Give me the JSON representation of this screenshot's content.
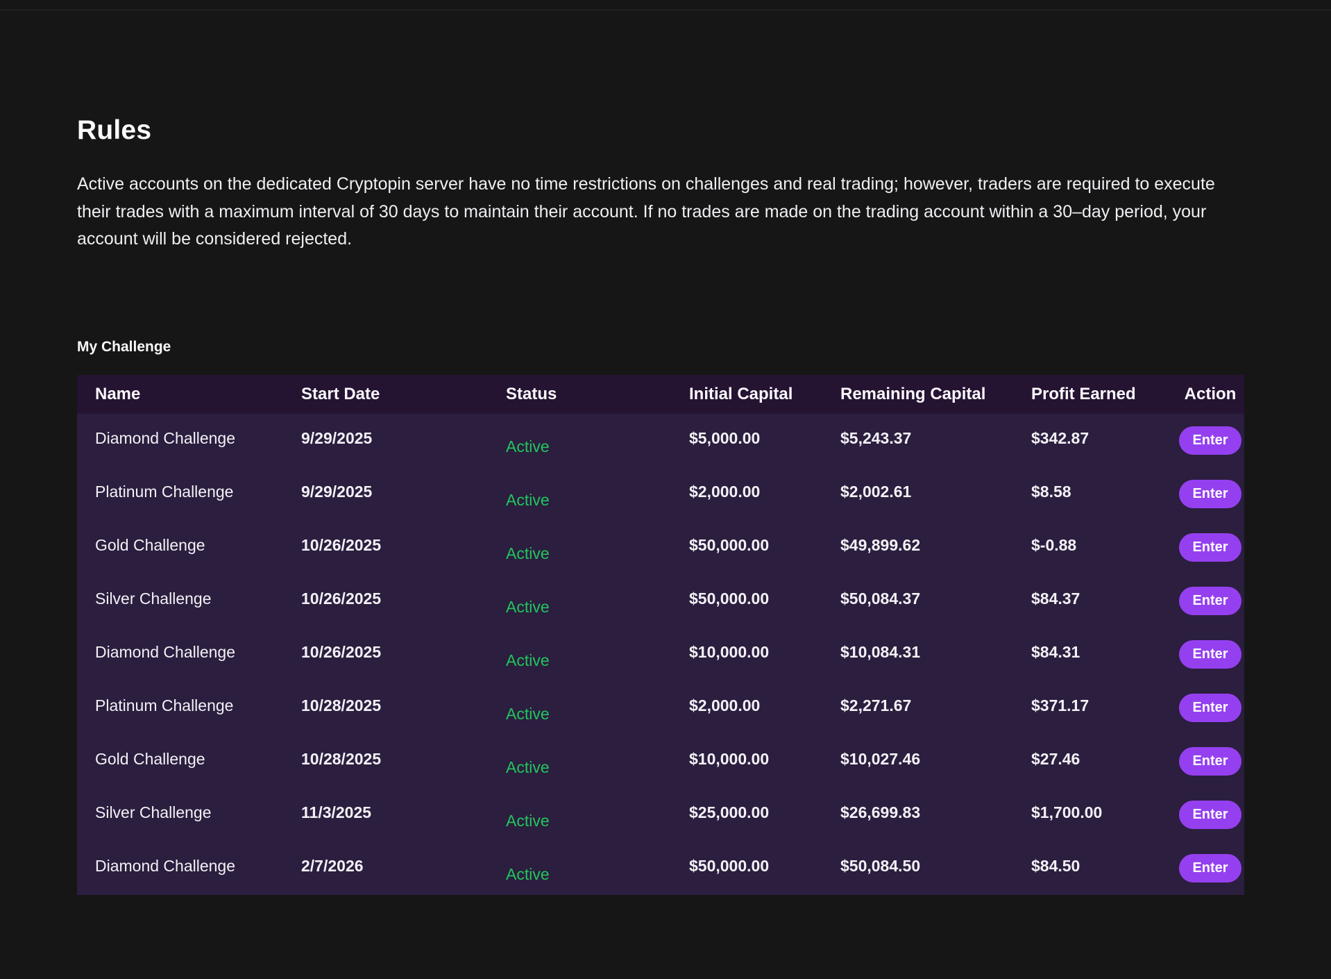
{
  "page": {
    "title": "Rules",
    "description": "Active accounts on the dedicated Cryptopin server have no time restrictions on challenges and real trading; however, traders are required to execute their trades with a maximum interval of 30 days to maintain their account. If no trades are made on the trading account within a 30–day period, your account will be considered rejected.",
    "section_title": "My Challenge"
  },
  "colors": {
    "background": "#161616",
    "table_header_bg": "#251332",
    "table_body_bg": "#2b1e3e",
    "status_active_green": "#22c55e",
    "accent_button_purple": "#9540f0",
    "text": "#f3f1f6"
  },
  "table": {
    "headers": [
      "Name",
      "Start Date",
      "Status",
      "Initial Capital",
      "Remaining Capital",
      "Profit Earned",
      "Action"
    ],
    "action_label": "Enter",
    "rows": [
      {
        "name": "Diamond Challenge",
        "start_date": "9/29/2025",
        "status": "Active",
        "initial_capital": "$5,000.00",
        "remaining_capital": "$5,243.37",
        "profit_earned": "$342.87"
      },
      {
        "name": "Platinum Challenge",
        "start_date": "9/29/2025",
        "status": "Active",
        "initial_capital": "$2,000.00",
        "remaining_capital": "$2,002.61",
        "profit_earned": "$8.58"
      },
      {
        "name": "Gold Challenge",
        "start_date": "10/26/2025",
        "status": "Active",
        "initial_capital": "$50,000.00",
        "remaining_capital": "$49,899.62",
        "profit_earned": "$-0.88"
      },
      {
        "name": "Silver Challenge",
        "start_date": "10/26/2025",
        "status": "Active",
        "initial_capital": "$50,000.00",
        "remaining_capital": "$50,084.37",
        "profit_earned": "$84.37"
      },
      {
        "name": "Diamond Challenge",
        "start_date": "10/26/2025",
        "status": "Active",
        "initial_capital": "$10,000.00",
        "remaining_capital": "$10,084.31",
        "profit_earned": "$84.31"
      },
      {
        "name": "Platinum Challenge",
        "start_date": "10/28/2025",
        "status": "Active",
        "initial_capital": "$2,000.00",
        "remaining_capital": "$2,271.67",
        "profit_earned": "$371.17"
      },
      {
        "name": "Gold Challenge",
        "start_date": "10/28/2025",
        "status": "Active",
        "initial_capital": "$10,000.00",
        "remaining_capital": "$10,027.46",
        "profit_earned": "$27.46"
      },
      {
        "name": "Silver Challenge",
        "start_date": "11/3/2025",
        "status": "Active",
        "initial_capital": "$25,000.00",
        "remaining_capital": "$26,699.83",
        "profit_earned": "$1,700.00"
      },
      {
        "name": "Diamond Challenge",
        "start_date": "2/7/2026",
        "status": "Active",
        "initial_capital": "$50,000.00",
        "remaining_capital": "$50,084.50",
        "profit_earned": "$84.50"
      }
    ]
  }
}
